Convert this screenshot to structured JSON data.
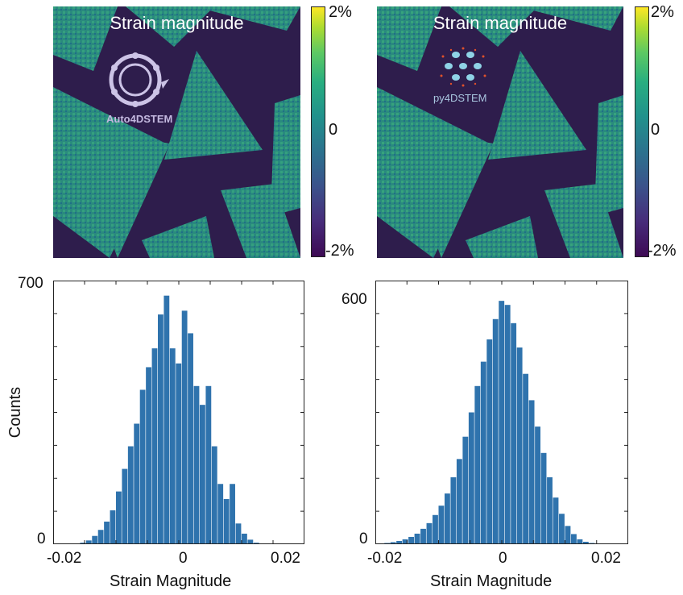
{
  "maps": [
    {
      "title": "Strain magnitude",
      "logo_label": "Auto4DSTEM",
      "colorbar": {
        "ticks": [
          "2%",
          "0",
          "-2%"
        ],
        "colormap": "viridis",
        "range": [
          -0.02,
          0.02
        ]
      },
      "background_color": "#2e1d4c",
      "crystal_color": "#2a8a7e"
    },
    {
      "title": "Strain magnitude",
      "logo_label": "py4DSTEM",
      "colorbar": {
        "ticks": [
          "2%",
          "0",
          "-2%"
        ],
        "colormap": "viridis",
        "range": [
          -0.02,
          0.02
        ]
      },
      "background_color": "#2e1d4c",
      "crystal_color": "#2a8a7e"
    }
  ],
  "chart_data": [
    {
      "type": "bar",
      "title": "",
      "xlabel": "Strain Magnitude",
      "ylabel": "Counts",
      "xlim": [
        -0.021,
        0.021
      ],
      "ylim": [
        0,
        700
      ],
      "xticks": [
        "-0.02",
        "0",
        "0.02"
      ],
      "yticks": [
        "700",
        "0"
      ],
      "bar_color": "#2f73ad",
      "x": [
        -0.016,
        -0.015,
        -0.014,
        -0.013,
        -0.012,
        -0.011,
        -0.01,
        -0.009,
        -0.008,
        -0.007,
        -0.006,
        -0.005,
        -0.004,
        -0.003,
        -0.002,
        -0.001,
        0.0,
        0.001,
        0.002,
        0.003,
        0.004,
        0.005,
        0.006,
        0.007,
        0.008,
        0.009,
        0.01,
        0.011,
        0.012,
        0.013
      ],
      "values": [
        4,
        10,
        22,
        38,
        60,
        90,
        140,
        200,
        260,
        320,
        410,
        470,
        520,
        610,
        660,
        520,
        480,
        620,
        560,
        420,
        370,
        420,
        260,
        160,
        120,
        160,
        55,
        28,
        12,
        4
      ]
    },
    {
      "type": "bar",
      "title": "",
      "xlabel": "Strain Magnitude",
      "ylabel": "",
      "xlim": [
        -0.021,
        0.021
      ],
      "ylim": [
        0,
        650
      ],
      "xticks": [
        "-0.02",
        "0",
        "0.02"
      ],
      "yticks": [
        "600",
        "0"
      ],
      "bar_color": "#2f73ad",
      "x": [
        -0.019,
        -0.018,
        -0.017,
        -0.016,
        -0.015,
        -0.014,
        -0.013,
        -0.012,
        -0.011,
        -0.01,
        -0.009,
        -0.008,
        -0.007,
        -0.006,
        -0.005,
        -0.004,
        -0.003,
        -0.002,
        -0.001,
        0.0,
        0.001,
        0.002,
        0.003,
        0.004,
        0.005,
        0.006,
        0.007,
        0.008,
        0.009,
        0.01,
        0.011,
        0.012,
        0.013,
        0.014,
        0.015
      ],
      "values": [
        3,
        5,
        8,
        12,
        18,
        26,
        38,
        52,
        72,
        95,
        125,
        165,
        210,
        265,
        325,
        390,
        450,
        505,
        555,
        600,
        590,
        545,
        485,
        420,
        355,
        290,
        225,
        165,
        115,
        75,
        45,
        25,
        12,
        6,
        3
      ]
    }
  ]
}
